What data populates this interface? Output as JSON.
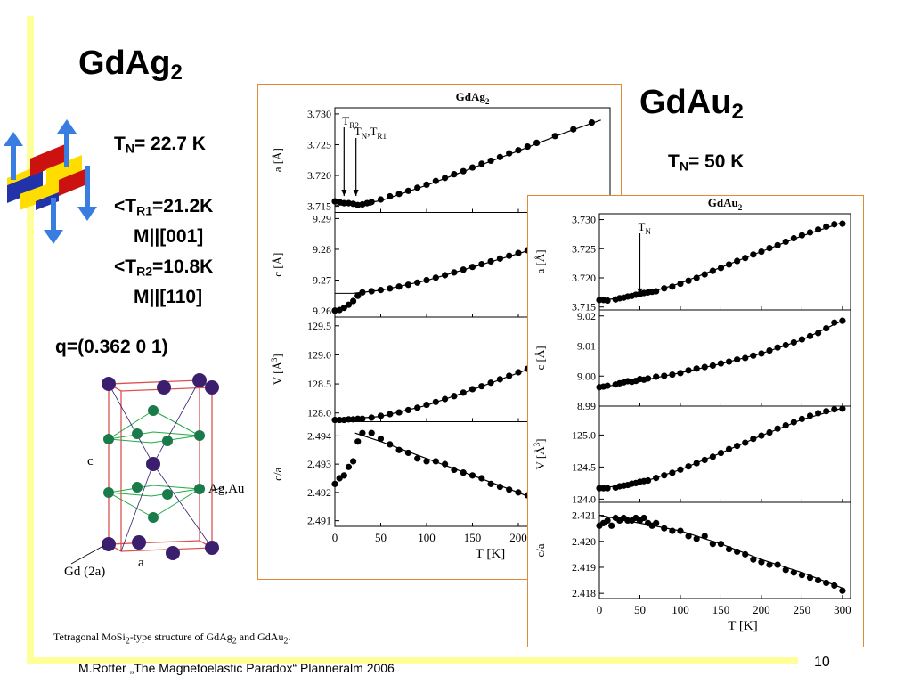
{
  "slide": {
    "title_left": {
      "main": "GdAg",
      "sub": "2"
    },
    "title_right": {
      "main": "GdAu",
      "sub": "2"
    },
    "tn_left": {
      "t": "T",
      "sub": "N",
      "rest": "= 22.7 K"
    },
    "tr1": {
      "pre": "<T",
      "sub": "R1",
      "rest": "=21.2K"
    },
    "tr1_m": "M||[001]",
    "tr2": {
      "pre": "<T",
      "sub": "R2",
      "rest": "=10.8K"
    },
    "tr2_m": "M||[110]",
    "q_vector": "q=(0.362  0  1)",
    "tn_right": {
      "t": "T",
      "sub": "N",
      "rest": "= 50 K"
    },
    "structure_labels": {
      "c": "c",
      "a": "a",
      "ag": "Ag,Au",
      "gd": "Gd (2a)"
    },
    "caption": {
      "text": "Tetragonal MoSi",
      "s1": "2",
      "mid": "-type structure of GdAg",
      "s2": "2",
      "mid2": " and GdAu",
      "s3": "2",
      "end": "."
    },
    "footer": "M.Rotter „The Magnetoelastic Paradox“ Planneralm 2006",
    "page_number": "10",
    "colors": {
      "accent_bar": "#ffff99",
      "panel_border": "#e08a3c",
      "atom_gd": "#3b1f6e",
      "atom_ag": "#1a7a4a",
      "cell_edge": "#d9534f"
    }
  },
  "chart_data": [
    {
      "type": "scatter",
      "title": "GdAg2",
      "xlabel": "T [K]",
      "xlim": [
        0,
        300
      ],
      "xticks": [
        0,
        50,
        100,
        150,
        200
      ],
      "panels": [
        {
          "ylabel": "a [Å]",
          "ylim": [
            3.714,
            3.731
          ],
          "yticks": [
            "3.715",
            "3.720",
            "3.725",
            "3.730"
          ],
          "annotations": [
            {
              "text": "TR2",
              "x": 10
            },
            {
              "text": "TN,TR1",
              "x": 23
            }
          ],
          "x": [
            0,
            5,
            10,
            15,
            20,
            25,
            30,
            35,
            40,
            50,
            60,
            70,
            80,
            90,
            100,
            110,
            120,
            130,
            140,
            150,
            160,
            170,
            180,
            190,
            200,
            210,
            220,
            240,
            260,
            280
          ],
          "y": [
            3.7158,
            3.7157,
            3.7155,
            3.7155,
            3.7154,
            3.7152,
            3.7153,
            3.7155,
            3.7157,
            3.7161,
            3.7166,
            3.717,
            3.7175,
            3.718,
            3.7185,
            3.7191,
            3.7196,
            3.7202,
            3.7207,
            3.7213,
            3.7219,
            3.7224,
            3.723,
            3.7236,
            3.7241,
            3.7247,
            3.7253,
            3.7264,
            3.7275,
            3.7286
          ],
          "fit": [
            [
              23,
              3.7153
            ],
            [
              50,
              3.7159
            ],
            [
              100,
              3.7184
            ],
            [
              150,
              3.7212
            ],
            [
              200,
              3.724
            ],
            [
              250,
              3.7269
            ],
            [
              290,
              3.729
            ]
          ],
          "hline": {
            "y": 3.7152,
            "x0": 0,
            "x1": 40
          }
        },
        {
          "ylabel": "c [Å]",
          "ylim": [
            9.258,
            9.292
          ],
          "yticks": [
            "9.26",
            "9.27",
            "9.28",
            "9.29"
          ],
          "x": [
            0,
            5,
            10,
            15,
            20,
            25,
            30,
            40,
            50,
            60,
            70,
            80,
            90,
            100,
            110,
            120,
            130,
            140,
            150,
            160,
            170,
            180,
            190,
            200,
            210
          ],
          "y": [
            9.2601,
            9.2603,
            9.261,
            9.262,
            9.2632,
            9.2649,
            9.266,
            9.2664,
            9.2668,
            9.2673,
            9.2679,
            9.2685,
            9.2692,
            9.27,
            9.2708,
            9.2716,
            9.2725,
            9.2734,
            9.2743,
            9.2752,
            9.2761,
            9.277,
            9.2779,
            9.2788,
            9.2797
          ],
          "fit": [
            [
              20,
              9.2657
            ],
            [
              50,
              9.2667
            ],
            [
              100,
              9.2699
            ],
            [
              150,
              9.2742
            ],
            [
              200,
              9.2786
            ],
            [
              215,
              9.28
            ]
          ],
          "hline": {
            "y": 9.2657,
            "x0": 0,
            "x1": 20
          }
        },
        {
          "ylabel": "V [Å3]",
          "ylim": [
            127.85,
            129.65
          ],
          "yticks": [
            "128.0",
            "128.5",
            "129.0",
            "129.5"
          ],
          "x": [
            0,
            5,
            10,
            15,
            20,
            25,
            30,
            40,
            50,
            60,
            70,
            80,
            90,
            100,
            110,
            120,
            130,
            140,
            150,
            160,
            170,
            180,
            190,
            200,
            210
          ],
          "y": [
            127.88,
            127.88,
            127.88,
            127.89,
            127.89,
            127.9,
            127.9,
            127.92,
            127.95,
            127.98,
            128.01,
            128.05,
            128.09,
            128.14,
            128.19,
            128.24,
            128.29,
            128.35,
            128.41,
            128.46,
            128.52,
            128.58,
            128.64,
            128.7,
            128.76
          ],
          "fit": [
            [
              0,
              127.88
            ],
            [
              50,
              127.94
            ],
            [
              100,
              128.13
            ],
            [
              150,
              128.4
            ],
            [
              200,
              128.69
            ],
            [
              215,
              128.78
            ]
          ]
        },
        {
          "ylabel": "c/a",
          "ylim": [
            2.4908,
            2.4945
          ],
          "yticks": [
            "2.491",
            "2.492",
            "2.493",
            "2.494"
          ],
          "x": [
            0,
            5,
            10,
            15,
            20,
            25,
            30,
            40,
            50,
            60,
            70,
            80,
            90,
            100,
            110,
            120,
            130,
            140,
            150,
            160,
            170,
            180,
            190,
            200,
            210
          ],
          "y": [
            2.4923,
            2.4925,
            2.4926,
            2.4929,
            2.4931,
            2.4938,
            2.4941,
            2.4941,
            2.4939,
            2.4937,
            2.4935,
            2.4934,
            2.4932,
            2.4931,
            2.4931,
            2.493,
            2.4928,
            2.4927,
            2.4926,
            2.4925,
            2.4923,
            2.4922,
            2.4921,
            2.492,
            2.4919
          ],
          "fit": [
            [
              22,
              2.4941
            ],
            [
              50,
              2.4938
            ],
            [
              100,
              2.4932
            ],
            [
              150,
              2.4926
            ],
            [
              200,
              2.492
            ],
            [
              215,
              2.4918
            ]
          ]
        }
      ]
    },
    {
      "type": "scatter",
      "title": "GdAu2",
      "xlabel": "T [K]",
      "xlim": [
        0,
        310
      ],
      "xticks": [
        0,
        50,
        100,
        150,
        200,
        250,
        300
      ],
      "panels": [
        {
          "ylabel": "a [Å]",
          "ylim": [
            3.7145,
            3.731
          ],
          "yticks": [
            "3.715",
            "3.720",
            "3.725",
            "3.730"
          ],
          "annotations": [
            {
              "text": "TN",
              "x": 50
            }
          ],
          "x": [
            0,
            5,
            10,
            20,
            25,
            30,
            35,
            40,
            45,
            50,
            55,
            60,
            65,
            70,
            80,
            90,
            100,
            110,
            120,
            130,
            140,
            150,
            160,
            170,
            180,
            190,
            200,
            210,
            220,
            230,
            240,
            250,
            260,
            270,
            280,
            290,
            300
          ],
          "y": [
            3.7162,
            3.7162,
            3.7161,
            3.7163,
            3.7165,
            3.7166,
            3.7168,
            3.7169,
            3.7171,
            3.7172,
            3.7174,
            3.7175,
            3.7176,
            3.7177,
            3.7182,
            3.7185,
            3.719,
            3.7195,
            3.72,
            3.7206,
            3.7212,
            3.7217,
            3.7223,
            3.7229,
            3.7234,
            3.724,
            3.7245,
            3.7251,
            3.7256,
            3.7262,
            3.7268,
            3.7273,
            3.7278,
            3.7283,
            3.7288,
            3.7292,
            3.7293
          ],
          "fit": [
            [
              0,
              3.7161
            ],
            [
              50,
              3.717
            ],
            [
              100,
              3.7191
            ],
            [
              150,
              3.7218
            ],
            [
              200,
              3.7245
            ],
            [
              250,
              3.7272
            ],
            [
              300,
              3.7295
            ]
          ]
        },
        {
          "ylabel": "c [Å]",
          "ylim": [
            8.99,
            9.022
          ],
          "yticks": [
            "8.99",
            "9.00",
            "9.01",
            "9.02"
          ],
          "x": [
            0,
            5,
            10,
            20,
            25,
            30,
            35,
            40,
            45,
            50,
            55,
            60,
            70,
            80,
            90,
            100,
            110,
            120,
            130,
            140,
            150,
            160,
            170,
            180,
            190,
            200,
            210,
            220,
            230,
            240,
            250,
            260,
            270,
            280,
            290,
            300
          ],
          "y": [
            8.9963,
            8.9965,
            8.9968,
            8.9972,
            8.9976,
            8.9979,
            8.9983,
            8.9981,
            8.9984,
            8.999,
            8.9988,
            8.9992,
            8.9998,
            9.0001,
            9.0005,
            9.001,
            9.0019,
            9.0025,
            9.003,
            9.0035,
            9.0042,
            9.0048,
            9.0055,
            9.006,
            9.0068,
            9.0075,
            9.0085,
            9.0095,
            9.0103,
            9.0112,
            9.0122,
            9.0133,
            9.0143,
            9.0159,
            9.0178,
            9.0184
          ],
          "fit": [
            [
              0,
              8.9962
            ],
            [
              50,
              8.9984
            ],
            [
              100,
              9.0011
            ],
            [
              150,
              9.0041
            ],
            [
              200,
              9.0075
            ],
            [
              250,
              9.012
            ],
            [
              300,
              9.0185
            ]
          ]
        },
        {
          "ylabel": "V [Å3]",
          "ylim": [
            123.95,
            125.45
          ],
          "yticks": [
            "124.0",
            "124.5",
            "125.0"
          ],
          "x": [
            0,
            5,
            10,
            20,
            25,
            30,
            35,
            40,
            45,
            50,
            55,
            60,
            70,
            80,
            90,
            100,
            110,
            120,
            130,
            140,
            150,
            160,
            170,
            180,
            190,
            200,
            210,
            220,
            230,
            240,
            250,
            260,
            270,
            280,
            290,
            300
          ],
          "y": [
            124.17,
            124.17,
            124.17,
            124.18,
            124.2,
            124.21,
            124.22,
            124.24,
            124.25,
            124.27,
            124.28,
            124.29,
            124.33,
            124.37,
            124.41,
            124.46,
            124.51,
            124.56,
            124.61,
            124.66,
            124.72,
            124.78,
            124.83,
            124.88,
            124.94,
            124.99,
            125.04,
            125.1,
            125.15,
            125.2,
            125.25,
            125.3,
            125.34,
            125.37,
            125.4,
            125.41
          ],
          "fit": [
            [
              0,
              124.17
            ],
            [
              50,
              124.25
            ],
            [
              100,
              124.46
            ],
            [
              150,
              124.72
            ],
            [
              200,
              124.99
            ],
            [
              250,
              125.24
            ],
            [
              300,
              125.42
            ]
          ]
        },
        {
          "ylabel": "c/a",
          "ylim": [
            2.4178,
            2.4215
          ],
          "yticks": [
            "2.418",
            "2.419",
            "2.420",
            "2.421"
          ],
          "x": [
            0,
            5,
            10,
            15,
            20,
            25,
            30,
            35,
            40,
            45,
            50,
            55,
            60,
            65,
            70,
            80,
            90,
            100,
            110,
            120,
            130,
            140,
            150,
            160,
            170,
            180,
            190,
            200,
            210,
            220,
            230,
            240,
            250,
            260,
            270,
            280,
            290,
            300
          ],
          "y": [
            2.4206,
            2.4207,
            2.4208,
            2.4206,
            2.4209,
            2.4208,
            2.4209,
            2.4208,
            2.4208,
            2.4209,
            2.4208,
            2.4209,
            2.4207,
            2.4206,
            2.4207,
            2.4205,
            2.4204,
            2.4204,
            2.4202,
            2.4201,
            2.4202,
            2.4199,
            2.4199,
            2.4197,
            2.4196,
            2.4195,
            2.4193,
            2.4192,
            2.4191,
            2.4191,
            2.4189,
            2.4188,
            2.4187,
            2.4186,
            2.4185,
            2.4184,
            2.4183,
            2.4181
          ],
          "fit": [
            [
              0,
              2.421
            ],
            [
              50,
              2.4207
            ],
            [
              100,
              2.4204
            ],
            [
              150,
              2.4199
            ],
            [
              200,
              2.4193
            ],
            [
              250,
              2.4188
            ],
            [
              300,
              2.4182
            ]
          ]
        }
      ]
    }
  ]
}
